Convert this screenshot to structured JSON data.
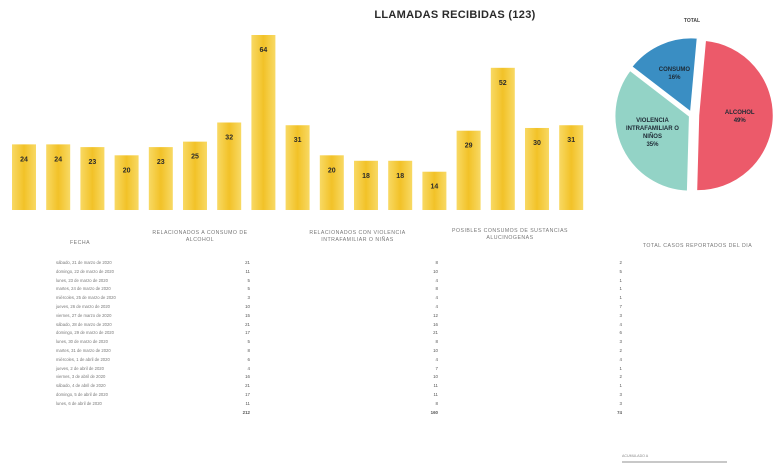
{
  "chart_data": [
    {
      "type": "bar",
      "title": "LLAMADAS RECIBIDAS (123)",
      "values": [
        24,
        24,
        23,
        20,
        23,
        25,
        32,
        64,
        31,
        20,
        18,
        18,
        14,
        29,
        52,
        30,
        31
      ],
      "colors": {
        "bar": "#f2c228",
        "bar_light": "#f8d964",
        "label": "#2b2b2b"
      },
      "grid": false
    },
    {
      "type": "pie",
      "title": "TOTAL",
      "slices": [
        {
          "label": "ALCOHOL",
          "value": 49,
          "value_label": "49%",
          "color": "#ec5a6a"
        },
        {
          "label": "VIOLENCIA INTRAFAMILIAR O NIÑOS",
          "value": 35,
          "value_label": "35%",
          "color": "#93d3c6"
        },
        {
          "label": "CONSUMO",
          "value": 16,
          "value_label": "16%",
          "color": "#3a8ec3"
        }
      ]
    }
  ],
  "table": {
    "headers": {
      "fecha": "FECHA",
      "alcohol": "RELACIONADOS A CONSUMO DE ALCOHOL",
      "violencia": "RELACIONADOS CON VIOLENCIA INTRAFAMILIAR O NIÑAS",
      "sustancias": "POSIBLES CONSUMOS DE SUSTANCIAS ALUCINOGENAS",
      "total": "TOTAL CASOS REPORTADOS DEL DIA"
    },
    "rows": [
      {
        "fecha": "sábado, 21 de marzo de 2020",
        "alcohol": "21",
        "violencia": "8",
        "total": "2"
      },
      {
        "fecha": "domingo, 22 de marzo de 2020",
        "alcohol": "11",
        "violencia": "10",
        "total": "5"
      },
      {
        "fecha": "lunes, 23 de marzo de 2020",
        "alcohol": "5",
        "violencia": "4",
        "total": "1"
      },
      {
        "fecha": "martes, 24 de marzo de 2020",
        "alcohol": "5",
        "violencia": "8",
        "total": "1"
      },
      {
        "fecha": "miércoles, 25 de marzo de 2020",
        "alcohol": "3",
        "violencia": "4",
        "total": "1"
      },
      {
        "fecha": "jueves, 26 de marzo de 2020",
        "alcohol": "10",
        "violencia": "4",
        "total": "7"
      },
      {
        "fecha": "viernes, 27 de marzo de 2020",
        "alcohol": "15",
        "violencia": "12",
        "total": "3"
      },
      {
        "fecha": "sábado, 28 de marzo de 2020",
        "alcohol": "21",
        "violencia": "16",
        "total": "4"
      },
      {
        "fecha": "domingo, 29 de marzo de 2020",
        "alcohol": "17",
        "violencia": "21",
        "total": "6"
      },
      {
        "fecha": "lunes, 30 de marzo de 2020",
        "alcohol": "5",
        "violencia": "8",
        "total": "3"
      },
      {
        "fecha": "martes, 31 de marzo de 2020",
        "alcohol": "8",
        "violencia": "10",
        "total": "2"
      },
      {
        "fecha": "miércoles, 1 de abril de 2020",
        "alcohol": "6",
        "violencia": "4",
        "total": "4"
      },
      {
        "fecha": "jueves, 2 de abril de 2020",
        "alcohol": "4",
        "violencia": "7",
        "total": "1"
      },
      {
        "fecha": "viernes, 3 de abril de 2020",
        "alcohol": "16",
        "violencia": "10",
        "total": "2"
      },
      {
        "fecha": "sábado, 4 de abril de 2020",
        "alcohol": "21",
        "violencia": "11",
        "total": "1"
      },
      {
        "fecha": "domingo, 5 de abril de 2020",
        "alcohol": "17",
        "violencia": "11",
        "total": "3"
      },
      {
        "fecha": "lunes, 6 de abril de 2020",
        "alcohol": "11",
        "violencia": "8",
        "total": "3"
      }
    ],
    "totals": {
      "alcohol": "212",
      "violencia": "160",
      "total": "74"
    },
    "footnote_line1": "ACUMULADO A",
    "footnote_line2": ""
  }
}
